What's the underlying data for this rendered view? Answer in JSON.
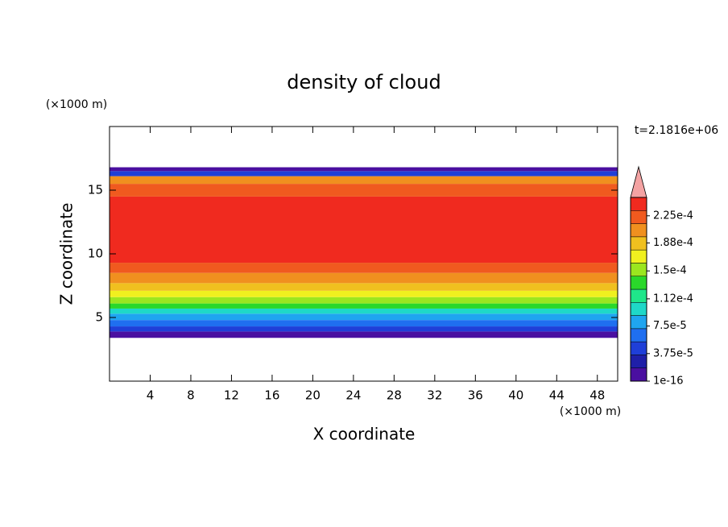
{
  "chart_data": {
    "type": "contour",
    "title": "density of cloud",
    "xlabel": "X coordinate",
    "ylabel": "Z coordinate",
    "xunit": "(×1000 m)",
    "yunit": "(×1000 m)",
    "annotation": "t=2.1816e+06",
    "xlim": [
      0,
      50
    ],
    "xticks": [
      4,
      8,
      12,
      16,
      20,
      24,
      28,
      32,
      36,
      40,
      44,
      48
    ],
    "ylim": [
      0,
      20
    ],
    "yticks": [
      5,
      10,
      15
    ],
    "clim": [
      1e-16,
      0.00025
    ],
    "colors": [
      "#4a0fa0",
      "#1f1fa8",
      "#1f3fd8",
      "#1f6ff0",
      "#1fa5f0",
      "#1fd8c8",
      "#1fe68a",
      "#2ad82a",
      "#9be61f",
      "#f0f01f",
      "#f0c01f",
      "#f0901f",
      "#f05a1f",
      "#f02a1f"
    ],
    "over_color": "#f4a3a3",
    "cticks": [
      1e-16,
      {
        "value": 3.75e-05,
        "label": "3.75e-5"
      },
      {
        "value": 7.5e-05,
        "label": "7.5e-5"
      },
      {
        "value": 0.000112,
        "label": "1.12e-4"
      },
      {
        "value": 0.00015,
        "label": "1.5e-4"
      },
      {
        "value": 0.000188,
        "label": "1.88e-4"
      },
      {
        "value": 0.000225,
        "label": "2.25e-4"
      }
    ],
    "bands": [
      {
        "z0": 3.4,
        "z1": 3.9,
        "color": "#4a0fa0"
      },
      {
        "z0": 3.9,
        "z1": 4.3,
        "color": "#1f3fd8"
      },
      {
        "z0": 4.3,
        "z1": 4.8,
        "color": "#1f6ff0"
      },
      {
        "z0": 4.8,
        "z1": 5.3,
        "color": "#1fa5f0"
      },
      {
        "z0": 5.3,
        "z1": 5.7,
        "color": "#1fd8c8"
      },
      {
        "z0": 5.7,
        "z1": 6.1,
        "color": "#2ad82a"
      },
      {
        "z0": 6.1,
        "z1": 6.6,
        "color": "#9be61f"
      },
      {
        "z0": 6.6,
        "z1": 7.1,
        "color": "#f0f01f"
      },
      {
        "z0": 7.1,
        "z1": 7.7,
        "color": "#f0c01f"
      },
      {
        "z0": 7.7,
        "z1": 8.5,
        "color": "#f0901f"
      },
      {
        "z0": 8.5,
        "z1": 9.3,
        "color": "#f05a1f"
      },
      {
        "z0": 9.3,
        "z1": 14.5,
        "color": "#f02a1f"
      },
      {
        "z0": 14.5,
        "z1": 15.5,
        "color": "#f05a1f"
      },
      {
        "z0": 15.5,
        "z1": 16.1,
        "color": "#f0901f"
      },
      {
        "z0": 16.1,
        "z1": 16.5,
        "color": "#1f3fd8"
      },
      {
        "z0": 16.5,
        "z1": 16.8,
        "color": "#4a0fa0"
      }
    ]
  }
}
